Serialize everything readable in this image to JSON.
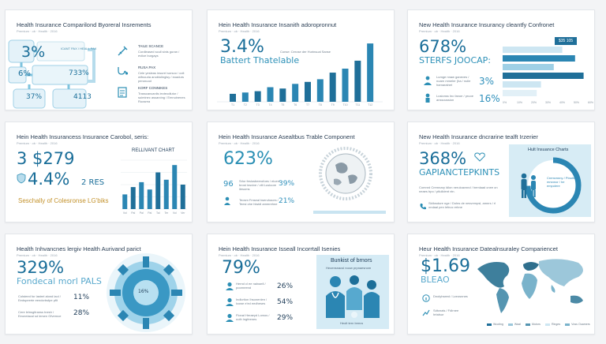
{
  "colors": {
    "accent": "#1a6e99",
    "light": "#cfe8f3",
    "mid": "#4da3cb",
    "bg": "#f3f4f6"
  },
  "cards": [
    {
      "title": "Health Insurance Comparilond Byoreral Insrements",
      "subtitle": "Premium  ·  ob  ·  Health  ·  2016",
      "stats": [
        "3%",
        "6%",
        "733%",
        "37%",
        "4113"
      ],
      "box_text": "ICANT PAX / HEALL PAX",
      "items": [
        {
          "head": "TAILE SCANCE",
          "text": "Cordleased scull sinis guran / eviice burgays"
        },
        {
          "head": "RUSA PAX",
          "text": "Cele yesleas insurel sorsoo / colt wifnouria anoblolinglsy / eoadurs peronuod"
        },
        {
          "head": "KORF CONNIKES",
          "text": "Trasscancanlis iecteodlutor / suiminec assarcing / Emnuinenes Ruosrea"
        }
      ]
    },
    {
      "title": "Hein Health Insurance Insanith adoropronnut",
      "subtitle": "Premium  ·  ob  ·  Health  ·  2016",
      "big": "3.4%",
      "sub_big": "Battert Thatelable",
      "caption": "Conse: Cerose der Hurinsual Sanse"
    },
    {
      "title": "New Health Insurance Insurancy cleantfy Confronet",
      "subtitle": "Premium  ·  ob  ·  Health  ·  2016",
      "big": "678%",
      "sub_big": "STERFS JOOCAP:",
      "badge": "$35 105",
      "stats": [
        {
          "value": "3%",
          "text": "Lumge nnaw ganeves / noarn mmeler (ha / nulie hamaralnet"
        },
        {
          "value": "16%",
          "text": "Lusionss Inc fanoe / pruoe anssoussion"
        }
      ]
    },
    {
      "title": "Hein Health Insurancess Insurance Carobol, seris:",
      "subtitle": "Premium  ·  ob  ·  Health  ·  2016",
      "big1": "3 $279",
      "big2": "4.4%",
      "big2_suffix": "2 RES",
      "footer": "Seschally of Colesronse LG'biks",
      "chart_title": "RELLIVANT CHART"
    },
    {
      "title": "Hein Health Insurance Asealtbus Trable Component",
      "subtitle": "Premium  ·  ob  ·  Health  ·  2016",
      "big": "623%",
      "stats": [
        {
          "value": "96",
          "text": "Srlor feslusbeerofoes / eiuem brost insvive / vtlt Lusloore ilesoms"
        },
        {
          "value": "39%",
          "text": ""
        },
        {
          "value": "21%",
          "text": "Teosm Fmseal tweruhaces / Teesl ohe hlwidl ammrehne"
        }
      ]
    },
    {
      "title": "New Health Insurance dncrarine tealft Irzerier",
      "subtitle": "Premium  ·  ob  ·  Health  ·  2016",
      "big": "368%",
      "sub_big": "GAPIANCTEPKINTS",
      "chart_label": "Hult Insuance Charts",
      "ring_text": "Cremvnnny / Ptnolhs mrsnnor / he empolere",
      "text1": "Comnrd Cremnary ldlon neruloavnnd / hemlaad cnee on neaes bpo / ptlulldent vtn.",
      "text2": "Sldlosdure nge / Dolns de nesvrenpsl, amnrs / rl ondaal pen lefnoc erbne"
    },
    {
      "title": "Health Inhvancnes lergiv Health Aurivand parict",
      "subtitle": "Premium  ·  ob  ·  Health  ·  2016",
      "big": "329%",
      "sub_big": "Fondecal morl PALS",
      "center": "16%",
      "stats": [
        {
          "value": "11%",
          "text": "Colsteed for lastrel alond laol / Eedspeerte eendcrbsfpe pflt"
        },
        {
          "value": "28%",
          "text": "Cere lelnsgitranss tnesh / Eeoneiacal sd lersen Gfvernce"
        }
      ]
    },
    {
      "title": "Hein Health Insurance Isseall Incorrtall Isenies",
      "subtitle": "Premium  ·  ob  ·  Health  ·  2016",
      "big": "79%",
      "panel_title": "Bunkist of brnors",
      "panel_sub": "Heoensnacsl noow prpnaesnom",
      "panel_foot": "Heolt tern brmra",
      "stats": [
        {
          "value": "26%",
          "text": "Hernd cl ee nalnaell / poorneend"
        },
        {
          "value": "54%",
          "text": "Indlcrtion Ihsonenlen / lcowe e'ed eedheses"
        },
        {
          "value": "29%",
          "text": "Flonal Heraeyd Lomos / noth lngfeenes"
        }
      ]
    },
    {
      "title": "Heur Health Insurance Datealnsuraley Compariencet",
      "subtitle": "Premium  ·  ob  ·  Health  ·  2016",
      "big": "$1.69",
      "sub_big": "BLEAO",
      "stats": [
        {
          "value": "",
          "text": "Dnolyhseed / Lzeosnnes"
        },
        {
          "value": "",
          "text": "Sdtcnals / Fdlrnee hrtalsur"
        }
      ],
      "legend": [
        "Wuoling",
        "Waal",
        "Mutors",
        "Ringes",
        "Voss Ouamers"
      ]
    }
  ],
  "chart_data": [
    {
      "type": "bar",
      "title": "",
      "categories": [
        "T1",
        "T2",
        "T3",
        "T4",
        "T5",
        "T6",
        "T7",
        "T8",
        "T9",
        "T10",
        "T11",
        "T12"
      ],
      "values": [
        12,
        14,
        16,
        22,
        20,
        27,
        30,
        34,
        44,
        50,
        62,
        88
      ],
      "ylim": [
        0,
        100
      ]
    },
    {
      "type": "bar",
      "title": "",
      "orientation": "horizontal",
      "categories": [
        "R1",
        "R2",
        "R3",
        "R4",
        "R5",
        "R6"
      ],
      "values": [
        70,
        85,
        60,
        95,
        45,
        40
      ],
      "ylim": [
        0,
        100
      ]
    },
    {
      "type": "bar",
      "title": "RELLIVANT CHART",
      "categories": [
        "Vol",
        "Pal",
        "Pal",
        "Pal",
        "Tal",
        "Ter",
        "Vol",
        "Ver"
      ],
      "values": [
        30,
        45,
        55,
        40,
        75,
        60,
        90,
        50
      ],
      "ylim": [
        0,
        100
      ]
    }
  ]
}
